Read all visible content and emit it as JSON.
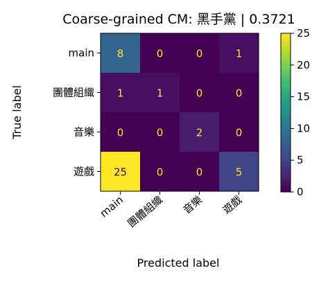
{
  "chart_data": {
    "type": "heatmap",
    "title": "Coarse-grained CM: 黑手黨 | 0.3721",
    "xlabel": "Predicted label",
    "ylabel": "True label",
    "x_categories": [
      "main",
      "團體組織",
      "音樂",
      "遊戲"
    ],
    "y_categories": [
      "main",
      "團體組織",
      "音樂",
      "遊戲"
    ],
    "matrix": [
      [
        8,
        0,
        0,
        1
      ],
      [
        1,
        1,
        0,
        0
      ],
      [
        0,
        0,
        2,
        0
      ],
      [
        25,
        0,
        0,
        5
      ]
    ],
    "colorbar": {
      "colormap": "viridis",
      "range": [
        0,
        25
      ],
      "ticks": [
        "0",
        "5",
        "10",
        "15",
        "20",
        "25"
      ]
    },
    "text_colors": {
      "dark_cell": "#fde725",
      "light_cell": "#440154"
    }
  }
}
